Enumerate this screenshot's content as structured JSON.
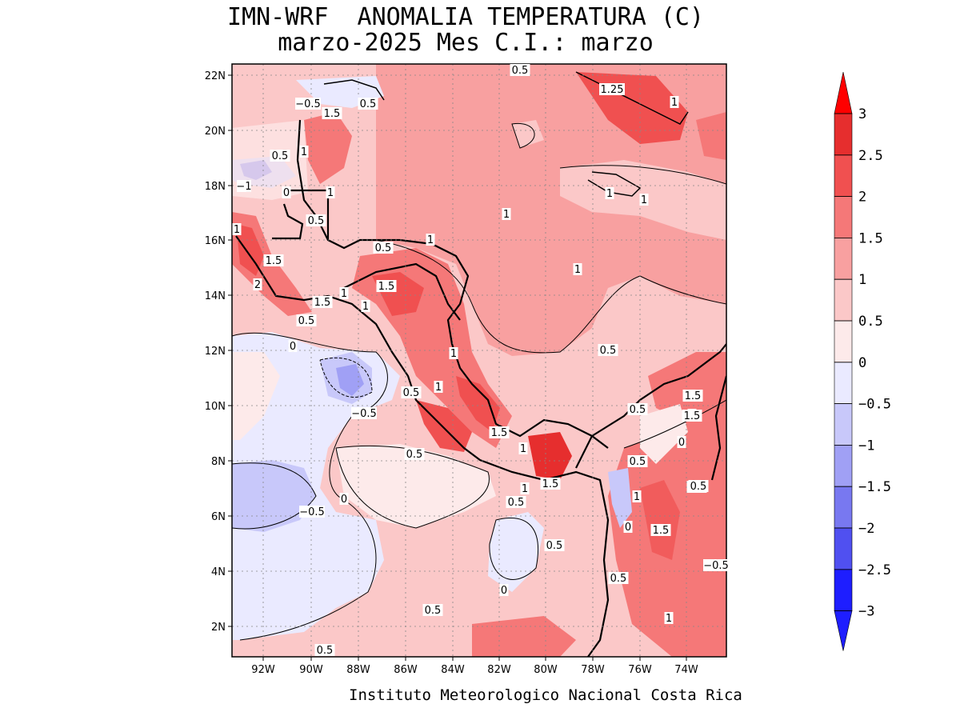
{
  "title_line1": "IMN-WRF  ANOMALIA TEMPERATURA (C)",
  "title_line2": "marzo-2025 Mes C.I.: marzo",
  "credit": "Instituto Meteorologico Nacional Costa Rica",
  "lat_labels": [
    "22N",
    "20N",
    "18N",
    "16N",
    "14N",
    "12N",
    "10N",
    "8N",
    "6N",
    "4N",
    "2N"
  ],
  "lon_labels": [
    "92W",
    "90W",
    "88W",
    "86W",
    "84W",
    "82W",
    "80W",
    "78W",
    "76W",
    "74W"
  ],
  "colorbar": {
    "levels": [
      "3",
      "2.5",
      "2",
      "1.5",
      "1",
      "0.5",
      "0",
      "−0.5",
      "−1",
      "−1.5",
      "−2",
      "−2.5",
      "−3"
    ],
    "colors": [
      "#ff0000",
      "#e62e2e",
      "#f05050",
      "#f57878",
      "#f8a0a0",
      "#fbc8c8",
      "#fdeaea",
      "#eaeaff",
      "#c8c8fa",
      "#a0a0f5",
      "#7878f0",
      "#5050f0",
      "#1e1eff"
    ]
  },
  "contour_labels": [
    {
      "text": "0.5"
    },
    {
      "text": "0.5"
    },
    {
      "text": "−0.5"
    },
    {
      "text": "1.5"
    },
    {
      "text": "1.25"
    },
    {
      "text": "1"
    },
    {
      "text": "0.5"
    },
    {
      "text": "1"
    },
    {
      "text": "−1"
    },
    {
      "text": "0"
    },
    {
      "text": "1"
    },
    {
      "text": "0.5"
    },
    {
      "text": "1"
    },
    {
      "text": "1"
    },
    {
      "text": "1"
    },
    {
      "text": "1"
    },
    {
      "text": "1"
    },
    {
      "text": "0.5"
    },
    {
      "text": "1.5"
    },
    {
      "text": "1.5"
    },
    {
      "text": "2"
    },
    {
      "text": "1"
    },
    {
      "text": "1.5"
    },
    {
      "text": "1"
    },
    {
      "text": "0.5"
    },
    {
      "text": "0"
    },
    {
      "text": "1"
    },
    {
      "text": "−0.5"
    },
    {
      "text": "0.5"
    },
    {
      "text": "1"
    },
    {
      "text": "1"
    },
    {
      "text": "0.5"
    },
    {
      "text": "1.5"
    },
    {
      "text": "1"
    },
    {
      "text": "1.5"
    },
    {
      "text": "1.5"
    },
    {
      "text": "0.5"
    },
    {
      "text": "1"
    },
    {
      "text": "0"
    },
    {
      "text": "0.5"
    },
    {
      "text": "0.5"
    },
    {
      "text": "1"
    },
    {
      "text": "0.5"
    },
    {
      "text": "1.5"
    },
    {
      "text": "0.5"
    },
    {
      "text": "−0.5"
    },
    {
      "text": "0"
    },
    {
      "text": "0.5"
    },
    {
      "text": "0"
    },
    {
      "text": "0.5"
    },
    {
      "text": "0.5"
    },
    {
      "text": "1.5"
    },
    {
      "text": "1"
    },
    {
      "text": "0"
    },
    {
      "text": "−0.5"
    },
    {
      "text": "0.5"
    },
    {
      "text": "1"
    },
    {
      "text": "0.5"
    }
  ]
}
